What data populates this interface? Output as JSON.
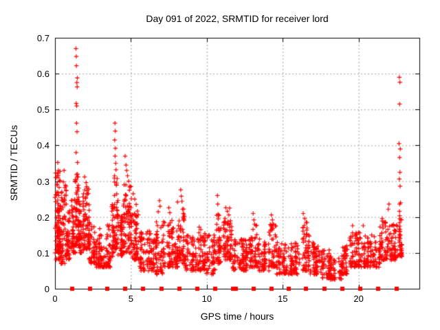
{
  "chart_data": {
    "type": "scatter",
    "title": "Day 091 of 2022, SRMTID for receiver lord",
    "xlabel": "GPS time / hours",
    "ylabel": "SRMTID / TECUs",
    "xlim": [
      0,
      24
    ],
    "ylim": [
      0,
      0.7
    ],
    "xticks": [
      0,
      5,
      10,
      15,
      20
    ],
    "yticks": [
      0,
      0.1,
      0.2,
      0.3,
      0.4,
      0.5,
      0.6,
      0.7
    ],
    "ytick_labels": [
      "0",
      "0.1",
      "0.2",
      "0.3",
      "0.4",
      "0.5",
      "0.6",
      "0.7"
    ],
    "grid": true,
    "legend": "none",
    "colors": {
      "marker": "#ff0000",
      "grid": "#a0a0a0",
      "axis": "#000000",
      "background": "#ffffff"
    },
    "series": [
      {
        "name": "SRMTID",
        "marker": "plus",
        "outlier_points": [
          [
            1.38,
            0.67
          ],
          [
            1.4,
            0.648
          ],
          [
            1.41,
            0.622
          ],
          [
            1.47,
            0.588
          ],
          [
            1.44,
            0.575
          ],
          [
            1.46,
            0.563
          ],
          [
            1.4,
            0.517
          ],
          [
            1.43,
            0.51
          ],
          [
            1.42,
            0.462
          ],
          [
            1.45,
            0.438
          ],
          [
            1.39,
            0.38
          ],
          [
            1.48,
            0.352
          ],
          [
            1.52,
            0.312
          ],
          [
            1.36,
            0.298
          ],
          [
            1.5,
            0.272
          ],
          [
            1.55,
            0.255
          ],
          [
            0.18,
            0.352
          ],
          [
            0.22,
            0.33
          ],
          [
            0.08,
            0.31
          ],
          [
            0.3,
            0.302
          ],
          [
            0.55,
            0.298
          ],
          [
            0.6,
            0.33
          ],
          [
            0.12,
            0.29
          ],
          [
            0.65,
            0.282
          ],
          [
            0.45,
            0.27
          ],
          [
            0.05,
            0.262
          ],
          [
            1.95,
            0.312
          ],
          [
            2.05,
            0.296
          ],
          [
            2.1,
            0.281
          ],
          [
            1.88,
            0.265
          ],
          [
            2.0,
            0.252
          ],
          [
            3.95,
            0.462
          ],
          [
            3.97,
            0.44
          ],
          [
            3.93,
            0.415
          ],
          [
            3.98,
            0.392
          ],
          [
            3.96,
            0.37
          ],
          [
            4.0,
            0.35
          ],
          [
            4.02,
            0.332
          ],
          [
            3.92,
            0.315
          ],
          [
            4.05,
            0.295
          ],
          [
            4.62,
            0.37
          ],
          [
            4.68,
            0.345
          ],
          [
            4.72,
            0.33
          ],
          [
            4.78,
            0.315
          ],
          [
            4.85,
            0.3
          ],
          [
            4.55,
            0.29
          ],
          [
            4.9,
            0.275
          ],
          [
            4.65,
            0.262
          ],
          [
            5.15,
            0.265
          ],
          [
            5.25,
            0.25
          ],
          [
            5.35,
            0.235
          ],
          [
            6.88,
            0.246
          ],
          [
            6.92,
            0.23
          ],
          [
            6.8,
            0.215
          ],
          [
            7.5,
            0.226
          ],
          [
            7.56,
            0.212
          ],
          [
            8.07,
            0.242
          ],
          [
            8.28,
            0.276
          ],
          [
            8.32,
            0.258
          ],
          [
            8.36,
            0.244
          ],
          [
            8.4,
            0.222
          ],
          [
            9.5,
            0.172
          ],
          [
            9.6,
            0.165
          ],
          [
            10.7,
            0.26
          ],
          [
            10.72,
            0.236
          ],
          [
            10.65,
            0.205
          ],
          [
            10.75,
            0.195
          ],
          [
            11.25,
            0.226
          ],
          [
            11.35,
            0.216
          ],
          [
            11.45,
            0.206
          ],
          [
            11.2,
            0.196
          ],
          [
            11.5,
            0.225
          ],
          [
            13.05,
            0.21
          ],
          [
            13.1,
            0.192
          ],
          [
            13.15,
            0.18
          ],
          [
            14.25,
            0.206
          ],
          [
            14.32,
            0.192
          ],
          [
            14.4,
            0.18
          ],
          [
            16.35,
            0.21
          ],
          [
            16.45,
            0.196
          ],
          [
            16.55,
            0.186
          ],
          [
            19.6,
            0.176
          ],
          [
            20.3,
            0.176
          ],
          [
            21.55,
            0.196
          ],
          [
            21.65,
            0.186
          ],
          [
            21.95,
            0.222
          ],
          [
            22.0,
            0.236
          ],
          [
            22.68,
            0.59
          ],
          [
            22.72,
            0.576
          ],
          [
            22.7,
            0.515
          ],
          [
            22.66,
            0.405
          ],
          [
            22.74,
            0.39
          ],
          [
            22.7,
            0.366
          ],
          [
            22.72,
            0.325
          ],
          [
            22.68,
            0.306
          ],
          [
            22.73,
            0.286
          ],
          [
            22.7,
            0.236
          ],
          [
            22.69,
            0.216
          ],
          [
            22.71,
            0.196
          ],
          [
            22.67,
            0.166
          ],
          [
            22.75,
            0.15
          ],
          [
            22.7,
            0.13
          ],
          [
            22.76,
            0.24
          ]
        ],
        "density_segments": [
          [
            0.0,
            0.35,
            0.08,
            0.33,
            60
          ],
          [
            0.05,
            0.45,
            0.1,
            0.24,
            48
          ],
          [
            0.35,
            0.75,
            0.07,
            0.3,
            60
          ],
          [
            0.75,
            1.05,
            0.08,
            0.22,
            44
          ],
          [
            1.05,
            1.35,
            0.1,
            0.26,
            48
          ],
          [
            1.33,
            1.62,
            0.12,
            0.32,
            64
          ],
          [
            1.6,
            1.9,
            0.1,
            0.26,
            44
          ],
          [
            1.9,
            2.25,
            0.11,
            0.29,
            56
          ],
          [
            2.25,
            2.7,
            0.07,
            0.19,
            48
          ],
          [
            2.7,
            3.2,
            0.06,
            0.17,
            56
          ],
          [
            3.2,
            3.65,
            0.06,
            0.18,
            48
          ],
          [
            3.65,
            3.9,
            0.09,
            0.24,
            32
          ],
          [
            3.9,
            4.15,
            0.11,
            0.31,
            44
          ],
          [
            4.15,
            4.45,
            0.09,
            0.21,
            40
          ],
          [
            4.45,
            5.05,
            0.1,
            0.29,
            84
          ],
          [
            5.05,
            5.55,
            0.08,
            0.22,
            56
          ],
          [
            5.55,
            6.1,
            0.05,
            0.16,
            56
          ],
          [
            6.1,
            6.55,
            0.05,
            0.17,
            48
          ],
          [
            6.55,
            7.15,
            0.04,
            0.19,
            60
          ],
          [
            7.15,
            7.7,
            0.06,
            0.2,
            56
          ],
          [
            7.7,
            8.1,
            0.06,
            0.17,
            44
          ],
          [
            8.1,
            8.55,
            0.07,
            0.23,
            52
          ],
          [
            8.55,
            9.3,
            0.05,
            0.15,
            64
          ],
          [
            9.3,
            9.95,
            0.05,
            0.16,
            60
          ],
          [
            9.95,
            10.55,
            0.04,
            0.15,
            56
          ],
          [
            10.55,
            10.9,
            0.07,
            0.21,
            40
          ],
          [
            10.9,
            11.7,
            0.08,
            0.21,
            76
          ],
          [
            11.7,
            12.4,
            0.05,
            0.14,
            60
          ],
          [
            12.4,
            12.9,
            0.05,
            0.14,
            48
          ],
          [
            12.9,
            13.35,
            0.06,
            0.18,
            44
          ],
          [
            13.35,
            14.1,
            0.05,
            0.14,
            60
          ],
          [
            14.1,
            14.6,
            0.06,
            0.18,
            48
          ],
          [
            14.6,
            15.4,
            0.04,
            0.13,
            64
          ],
          [
            15.4,
            16.1,
            0.04,
            0.13,
            60
          ],
          [
            16.1,
            16.75,
            0.05,
            0.19,
            56
          ],
          [
            16.75,
            17.4,
            0.04,
            0.13,
            56
          ],
          [
            17.4,
            18.1,
            0.03,
            0.11,
            60
          ],
          [
            18.1,
            18.9,
            0.025,
            0.09,
            60
          ],
          [
            18.9,
            19.4,
            0.04,
            0.12,
            44
          ],
          [
            19.4,
            20.0,
            0.06,
            0.16,
            56
          ],
          [
            20.0,
            20.7,
            0.06,
            0.16,
            56
          ],
          [
            20.7,
            21.4,
            0.06,
            0.15,
            56
          ],
          [
            21.4,
            22.1,
            0.08,
            0.19,
            60
          ],
          [
            22.1,
            22.55,
            0.08,
            0.18,
            44
          ],
          [
            22.55,
            22.85,
            0.09,
            0.22,
            40
          ]
        ]
      },
      {
        "name": "zero-flags",
        "marker": "filled-square",
        "y": 0,
        "x": [
          1.13,
          2.3,
          3.46,
          4.63,
          5.8,
          7.0,
          8.18,
          9.36,
          10.55,
          11.72,
          11.92,
          13.1,
          14.25,
          15.4,
          16.55,
          17.75,
          18.95,
          20.1,
          21.3,
          22.5
        ]
      }
    ]
  }
}
